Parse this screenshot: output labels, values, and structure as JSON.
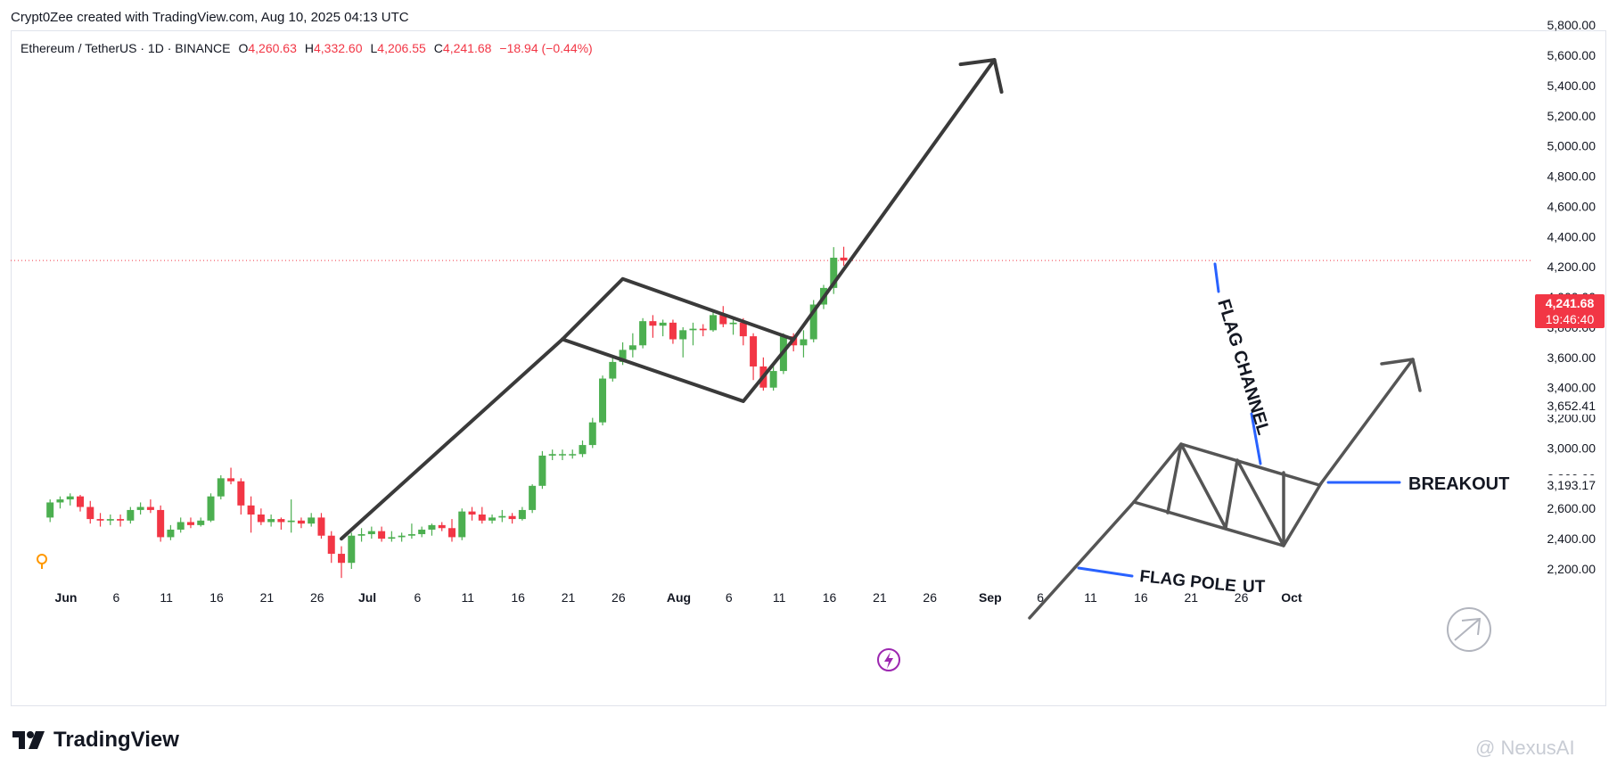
{
  "header": {
    "credit": "Crypt0Zee created with TradingView.com, Aug 10, 2025 04:13 UTC"
  },
  "legend": {
    "symbol": "Ethereum / TetherUS · 1D · BINANCE",
    "open_label": "O",
    "open": "4,260.63",
    "high_label": "H",
    "high": "4,332.60",
    "low_label": "L",
    "low": "4,206.55",
    "close_label": "C",
    "close": "4,241.68",
    "change": "−18.94 (−0.44%)"
  },
  "price_badges": {
    "last_price": "4,241.68",
    "countdown": "19:46:40",
    "level_1": "3,652.41",
    "level_2": "3,193.17"
  },
  "annotations": {
    "flag_channel": "FLAG CHANNEL",
    "breakout": "BREAKOUT",
    "flag_pole": "FLAG POLE",
    "flag_pole_suffix": "UT"
  },
  "footer": {
    "logo": "TradingView",
    "watermark": "@ NexusAI"
  },
  "colors": {
    "up": "#4caf50",
    "down": "#f23645",
    "drawing": "#3a3a3a",
    "callout": "#2962ff",
    "event": "#9c27b0"
  },
  "chart_data": {
    "type": "candlestick",
    "symbol": "ETHUSDT",
    "ylim": [
      2100,
      5800
    ],
    "yticks": [
      "2,200.00",
      "2,400.00",
      "2,600.00",
      "2,800.00",
      "3,000.00",
      "3,200.00",
      "3,400.00",
      "3,600.00",
      "3,800.00",
      "4,000.00",
      "4,200.00",
      "4,400.00",
      "4,600.00",
      "4,800.00",
      "5,000.00",
      "5,200.00",
      "5,400.00",
      "5,600.00",
      "5,800.00"
    ],
    "xticks": [
      {
        "d": 0,
        "label": "Jun"
      },
      {
        "d": 5,
        "label": "6"
      },
      {
        "d": 10,
        "label": "11"
      },
      {
        "d": 15,
        "label": "16"
      },
      {
        "d": 20,
        "label": "21"
      },
      {
        "d": 25,
        "label": "26"
      },
      {
        "d": 30,
        "label": "Jul"
      },
      {
        "d": 35,
        "label": "6"
      },
      {
        "d": 40,
        "label": "11"
      },
      {
        "d": 45,
        "label": "16"
      },
      {
        "d": 50,
        "label": "21"
      },
      {
        "d": 55,
        "label": "26"
      },
      {
        "d": 61,
        "label": "Aug"
      },
      {
        "d": 66,
        "label": "6"
      },
      {
        "d": 71,
        "label": "11"
      },
      {
        "d": 76,
        "label": "16"
      },
      {
        "d": 81,
        "label": "21"
      },
      {
        "d": 86,
        "label": "26"
      },
      {
        "d": 92,
        "label": "Sep"
      },
      {
        "d": 97,
        "label": "6"
      },
      {
        "d": 102,
        "label": "11"
      },
      {
        "d": 107,
        "label": "16"
      },
      {
        "d": 112,
        "label": "21"
      },
      {
        "d": 117,
        "label": "26"
      },
      {
        "d": 122,
        "label": "Oct"
      }
    ],
    "candles": [
      [
        2540,
        2660,
        2510,
        2640
      ],
      [
        2640,
        2680,
        2600,
        2660
      ],
      [
        2660,
        2700,
        2620,
        2680
      ],
      [
        2680,
        2690,
        2580,
        2610
      ],
      [
        2610,
        2650,
        2500,
        2530
      ],
      [
        2530,
        2570,
        2480,
        2520
      ],
      [
        2520,
        2560,
        2490,
        2530
      ],
      [
        2530,
        2560,
        2480,
        2520
      ],
      [
        2520,
        2610,
        2500,
        2590
      ],
      [
        2590,
        2640,
        2560,
        2610
      ],
      [
        2610,
        2660,
        2570,
        2590
      ],
      [
        2590,
        2620,
        2380,
        2410
      ],
      [
        2410,
        2490,
        2390,
        2460
      ],
      [
        2460,
        2540,
        2440,
        2510
      ],
      [
        2510,
        2540,
        2470,
        2490
      ],
      [
        2490,
        2540,
        2480,
        2520
      ],
      [
        2520,
        2700,
        2510,
        2680
      ],
      [
        2680,
        2820,
        2660,
        2800
      ],
      [
        2800,
        2870,
        2760,
        2780
      ],
      [
        2780,
        2800,
        2560,
        2620
      ],
      [
        2620,
        2680,
        2440,
        2560
      ],
      [
        2560,
        2600,
        2490,
        2510
      ],
      [
        2510,
        2560,
        2480,
        2530
      ],
      [
        2530,
        2540,
        2460,
        2510
      ],
      [
        2510,
        2660,
        2440,
        2520
      ],
      [
        2520,
        2540,
        2470,
        2500
      ],
      [
        2500,
        2570,
        2480,
        2540
      ],
      [
        2540,
        2570,
        2400,
        2420
      ],
      [
        2420,
        2450,
        2240,
        2300
      ],
      [
        2300,
        2350,
        2140,
        2240
      ],
      [
        2240,
        2440,
        2200,
        2420
      ],
      [
        2420,
        2470,
        2380,
        2430
      ],
      [
        2430,
        2480,
        2400,
        2450
      ],
      [
        2450,
        2480,
        2380,
        2400
      ],
      [
        2400,
        2450,
        2380,
        2410
      ],
      [
        2410,
        2440,
        2380,
        2420
      ],
      [
        2420,
        2500,
        2400,
        2430
      ],
      [
        2430,
        2480,
        2410,
        2460
      ],
      [
        2460,
        2500,
        2420,
        2490
      ],
      [
        2490,
        2510,
        2450,
        2470
      ],
      [
        2470,
        2530,
        2380,
        2410
      ],
      [
        2410,
        2600,
        2390,
        2580
      ],
      [
        2580,
        2610,
        2520,
        2560
      ],
      [
        2560,
        2610,
        2500,
        2520
      ],
      [
        2520,
        2560,
        2500,
        2540
      ],
      [
        2540,
        2590,
        2510,
        2550
      ],
      [
        2550,
        2570,
        2500,
        2530
      ],
      [
        2530,
        2610,
        2520,
        2590
      ],
      [
        2590,
        2760,
        2570,
        2750
      ],
      [
        2750,
        2980,
        2730,
        2950
      ],
      [
        2950,
        2990,
        2920,
        2960
      ],
      [
        2960,
        2990,
        2920,
        2960
      ],
      [
        2960,
        2990,
        2930,
        2960
      ],
      [
        2960,
        3050,
        2940,
        3020
      ],
      [
        3020,
        3200,
        3000,
        3170
      ],
      [
        3170,
        3480,
        3150,
        3460
      ],
      [
        3460,
        3600,
        3440,
        3570
      ],
      [
        3570,
        3700,
        3550,
        3650
      ],
      [
        3650,
        3760,
        3600,
        3680
      ],
      [
        3680,
        3860,
        3660,
        3840
      ],
      [
        3840,
        3880,
        3730,
        3810
      ],
      [
        3810,
        3850,
        3740,
        3830
      ],
      [
        3830,
        3850,
        3690,
        3720
      ],
      [
        3720,
        3800,
        3600,
        3780
      ],
      [
        3780,
        3830,
        3680,
        3790
      ],
      [
        3790,
        3820,
        3740,
        3780
      ],
      [
        3780,
        3900,
        3770,
        3880
      ],
      [
        3880,
        3940,
        3800,
        3820
      ],
      [
        3820,
        3850,
        3750,
        3830
      ],
      [
        3830,
        3860,
        3680,
        3740
      ],
      [
        3740,
        3760,
        3450,
        3540
      ],
      [
        3540,
        3600,
        3380,
        3400
      ],
      [
        3400,
        3550,
        3380,
        3510
      ],
      [
        3510,
        3760,
        3490,
        3740
      ],
      [
        3740,
        3760,
        3640,
        3680
      ],
      [
        3680,
        3780,
        3600,
        3720
      ],
      [
        3720,
        3980,
        3700,
        3950
      ],
      [
        3950,
        4080,
        3920,
        4060
      ],
      [
        4060,
        4330,
        4020,
        4260
      ],
      [
        4260.63,
        4332.6,
        4206.55,
        4241.68
      ]
    ],
    "last_price": 4241.68,
    "drawings": {
      "flag_pole": [
        [
          29,
          2400
        ],
        [
          51,
          3720
        ]
      ],
      "flag_upper": [
        [
          51,
          3720
        ],
        [
          57,
          4120
        ],
        [
          74,
          3720
        ]
      ],
      "flag_lower": [
        [
          51,
          3720
        ],
        [
          69,
          3310
        ],
        [
          74,
          3720
        ]
      ],
      "projection": [
        [
          74,
          3720
        ],
        [
          94,
          5570
        ]
      ]
    }
  }
}
